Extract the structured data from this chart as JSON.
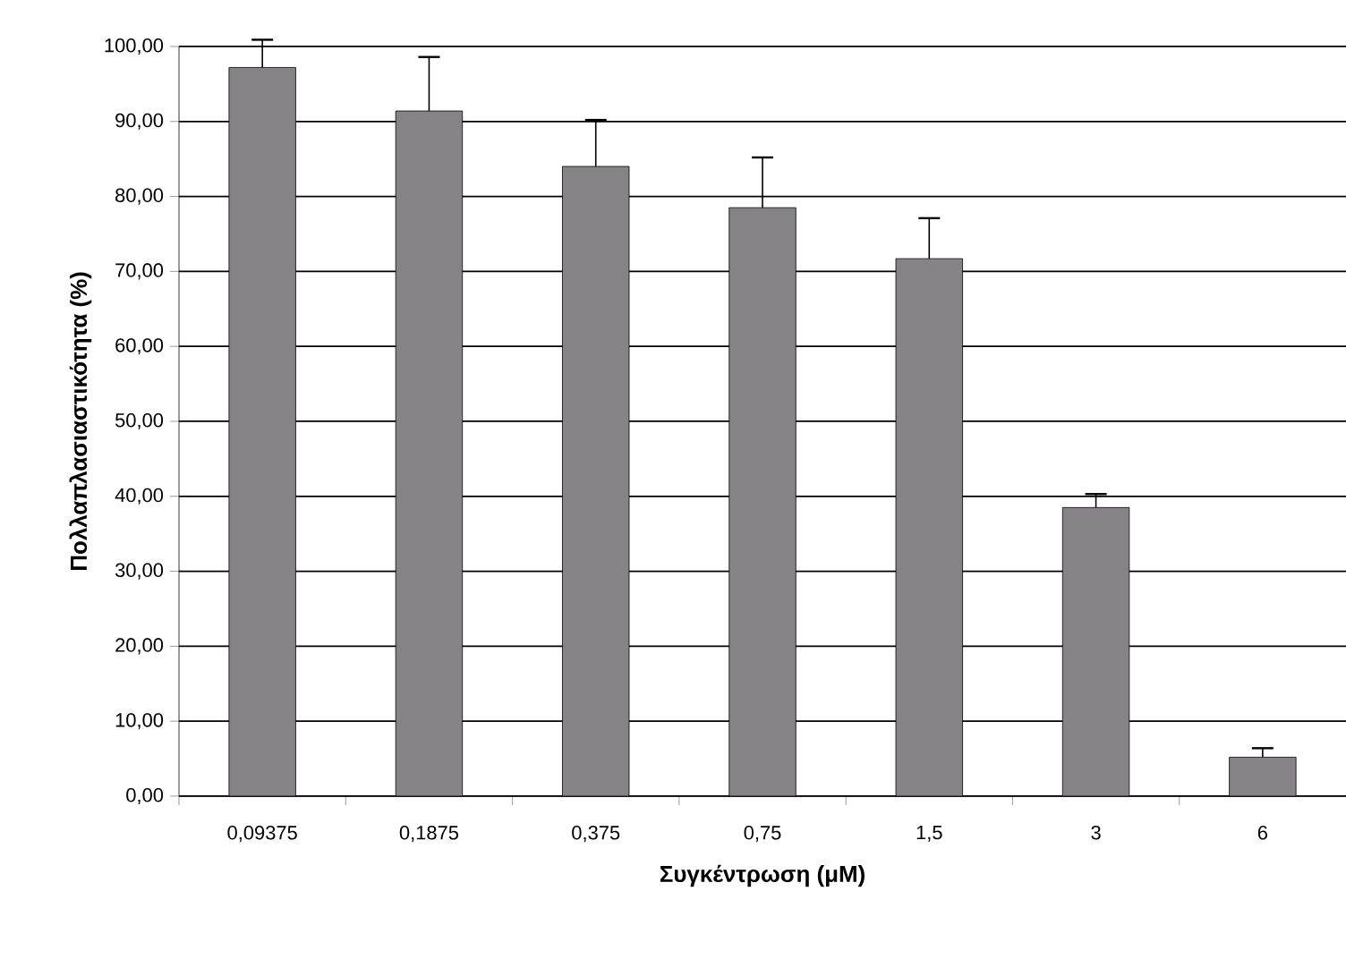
{
  "chart_data": {
    "type": "bar",
    "xlabel": "Συγκέντρωση (μM)",
    "ylabel": "Πολλαπλασιαστικότητα (%)",
    "categories": [
      "0,09375",
      "0,1875",
      "0,375",
      "0,75",
      "1,5",
      "3",
      "6"
    ],
    "values": [
      97.2,
      91.4,
      84.0,
      78.5,
      71.7,
      38.5,
      5.2
    ],
    "errors": [
      [
        97.2,
        100.9
      ],
      [
        91.4,
        98.6
      ],
      [
        84.0,
        90.2
      ],
      [
        78.5,
        85.2
      ],
      [
        71.7,
        77.1
      ],
      [
        38.5,
        40.3
      ],
      [
        5.2,
        6.4
      ]
    ],
    "color": "#858385",
    "ylim": [
      0,
      100
    ],
    "yticks": [
      {
        "value": 0,
        "label": "0,00"
      },
      {
        "value": 10,
        "label": "10,00"
      },
      {
        "value": 20,
        "label": "20,00"
      },
      {
        "value": 30,
        "label": "30,00"
      },
      {
        "value": 40,
        "label": "40,00"
      },
      {
        "value": 50,
        "label": "50,00"
      },
      {
        "value": 60,
        "label": "60,00"
      },
      {
        "value": 70,
        "label": "70,00"
      },
      {
        "value": 80,
        "label": "80,00"
      },
      {
        "value": 90,
        "label": "90,00"
      },
      {
        "value": 100,
        "label": "100,00"
      }
    ],
    "grid": "y"
  }
}
